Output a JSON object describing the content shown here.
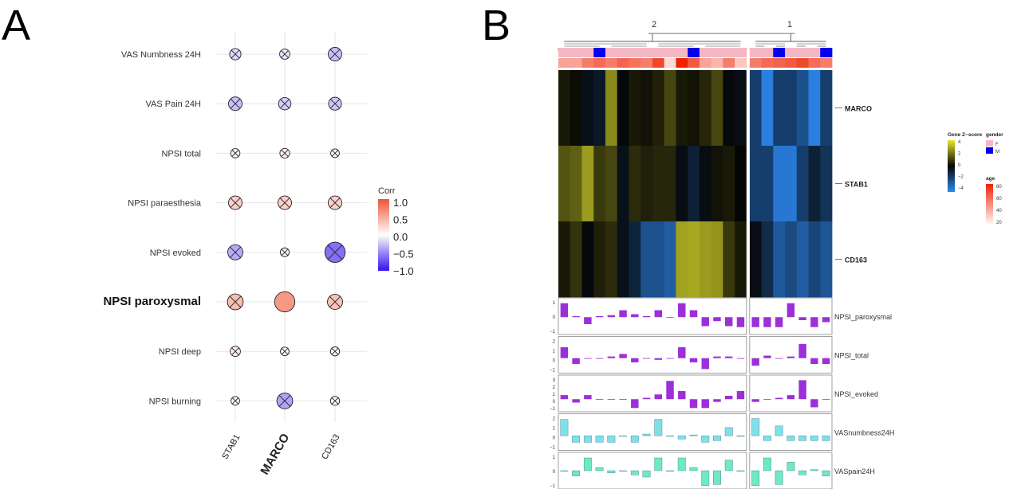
{
  "panel_labels": {
    "a": "A",
    "b": "B"
  },
  "colors": {
    "corr_pos": "#ee5533",
    "corr_neg": "#3311ee",
    "gender_F": "#f4b8c4",
    "gender_M": "#0000ee",
    "bar_purple": "#9b30d8",
    "bar_cyan": "#7fe0e8",
    "bar_teal": "#6fe8c4"
  },
  "chart_data": [
    {
      "type": "scatter",
      "subtype": "correlation-dot-matrix",
      "rows": [
        "VAS Numbness 24H",
        "VAS Pain 24H",
        "NPSI total",
        "NPSI paraesthesia",
        "NPSI evoked",
        "NPSI paroxysmal",
        "NPSI deep",
        "NPSI burning"
      ],
      "columns": [
        "STAB1",
        "MARCO",
        "CD163"
      ],
      "highlight_row": "NPSI paroxysmal",
      "highlight_column": "MARCO",
      "values": [
        [
          -0.15,
          -0.1,
          -0.25
        ],
        [
          -0.25,
          -0.2,
          -0.22
        ],
        [
          -0.06,
          0.08,
          0.03
        ],
        [
          0.25,
          0.25,
          0.25
        ],
        [
          -0.32,
          -0.04,
          -0.55
        ],
        [
          0.35,
          0.55,
          0.32
        ],
        [
          0.1,
          0.03,
          0.05
        ],
        [
          0.03,
          -0.35,
          0.05
        ]
      ],
      "crossed": [
        [
          true,
          true,
          true
        ],
        [
          true,
          true,
          true
        ],
        [
          true,
          true,
          true
        ],
        [
          true,
          true,
          true
        ],
        [
          true,
          true,
          true
        ],
        [
          true,
          false,
          true
        ],
        [
          true,
          true,
          true
        ],
        [
          true,
          true,
          true
        ]
      ],
      "legend": {
        "title": "Corr",
        "ticks": [
          "1.0",
          "0.5",
          "0.0",
          "−0.5",
          "−1.0"
        ]
      }
    },
    {
      "type": "heatmap",
      "cluster_labels": [
        "2",
        "1"
      ],
      "cluster_sizes": [
        16,
        7
      ],
      "genes": [
        "MARCO",
        "STAB1",
        "CD163"
      ],
      "zscores": [
        [
          0.3,
          0.1,
          -0.3,
          -0.5,
          2.0,
          -0.1,
          0.3,
          0.2,
          0.4,
          1.0,
          0.3,
          0.2,
          0.5,
          1.0,
          -0.1,
          -0.2,
          -1.5,
          -3.5,
          -1.5,
          -1.5,
          -2.0,
          -3.5,
          -1.5
        ],
        [
          1.2,
          1.4,
          2.3,
          0.8,
          1.0,
          -0.3,
          0.6,
          0.4,
          0.5,
          0.5,
          -0.2,
          -0.7,
          -0.2,
          0.2,
          0.3,
          0.0,
          -1.5,
          -1.5,
          -3.0,
          -3.0,
          -1.5,
          -0.7,
          -1.2
        ],
        [
          0.3,
          0.7,
          -0.1,
          0.4,
          0.6,
          -0.3,
          -0.8,
          -2.0,
          -2.0,
          -2.3,
          2.4,
          2.5,
          2.3,
          2.2,
          0.8,
          0.3,
          -0.2,
          -1.0,
          -2.2,
          -1.8,
          -2.3,
          -1.7,
          -2.1
        ]
      ],
      "gender": [
        "F",
        "F",
        "F",
        "M",
        "F",
        "F",
        "F",
        "F",
        "F",
        "F",
        "F",
        "M",
        "F",
        "F",
        "F",
        "F",
        "F",
        "F",
        "M",
        "F",
        "F",
        "F",
        "M"
      ],
      "age": [
        45,
        45,
        55,
        60,
        55,
        62,
        58,
        55,
        70,
        30,
        80,
        65,
        45,
        40,
        55,
        35,
        55,
        60,
        62,
        65,
        70,
        60,
        55
      ],
      "legends": {
        "zscore": {
          "title": "Gene Z−score",
          "ticks": [
            "4",
            "2",
            "0",
            "−2",
            "−4"
          ]
        },
        "gender": {
          "title": "gender",
          "items": [
            "F",
            "M"
          ]
        },
        "age": {
          "title": "age",
          "ticks": [
            "80",
            "60",
            "40",
            "20"
          ]
        }
      },
      "bar_tracks": [
        {
          "name": "NPSI_paroxysmal",
          "ticks": [
            "1",
            "0",
            "−1"
          ],
          "ylim": [
            -1.5,
            1.7
          ],
          "color": "bar_purple",
          "values": [
            1.4,
            0.1,
            -0.7,
            0.1,
            0.2,
            0.7,
            0.3,
            0.1,
            0.7,
            0,
            1.4,
            0.7,
            -0.9,
            -0.4,
            -0.9,
            -1.0,
            -1.0,
            -1.0,
            -1.0,
            1.4,
            -0.3,
            -1.0,
            -0.5
          ]
        },
        {
          "name": "NPSI_total",
          "ticks": [
            "2",
            "1",
            "0",
            "−1"
          ],
          "ylim": [
            -1.5,
            2.3
          ],
          "color": "bar_purple",
          "values": [
            1.3,
            -0.7,
            0,
            0,
            0.2,
            0.5,
            -0.5,
            0,
            -0.2,
            0,
            1.3,
            -0.5,
            -1.3,
            0.2,
            0.2,
            0,
            -0.9,
            0.3,
            0,
            0.2,
            1.7,
            -0.7,
            -0.7
          ]
        },
        {
          "name": "NPSI_evoked",
          "ticks": [
            "3",
            "2",
            "1",
            "0",
            "−1"
          ],
          "ylim": [
            -1.5,
            3.2
          ],
          "color": "bar_purple",
          "values": [
            0.6,
            -0.5,
            0.6,
            0,
            0,
            0,
            -1.3,
            0.2,
            0.7,
            2.7,
            1.2,
            -1.3,
            -1.3,
            -0.4,
            0.5,
            1.2,
            -0.4,
            0,
            0.2,
            0.6,
            2.8,
            -1.2,
            0
          ]
        },
        {
          "name": "VASnumbness24H",
          "ticks": [
            "2",
            "1",
            "0",
            "−1"
          ],
          "ylim": [
            -1.5,
            2.4
          ],
          "color": "bar_cyan",
          "values": [
            2.0,
            -0.8,
            -0.8,
            -0.8,
            -0.8,
            0,
            -0.8,
            0.2,
            2.0,
            0,
            -0.4,
            0.1,
            -0.8,
            -0.6,
            1.0,
            0,
            2.1,
            -0.6,
            1.2,
            -0.6,
            -0.6,
            -0.6,
            -0.6
          ]
        },
        {
          "name": "VASpain24H",
          "ticks": [
            "1",
            "0",
            "−1"
          ],
          "ylim": [
            -1.5,
            1.5
          ],
          "color": "bar_teal",
          "values": [
            0,
            -0.5,
            1.2,
            0.3,
            -0.2,
            0,
            -0.4,
            -0.6,
            1.2,
            0,
            1.2,
            0.3,
            -1.4,
            -1.3,
            1.0,
            0,
            -1.4,
            1.2,
            -1.3,
            0.8,
            -0.4,
            0.1,
            -0.5
          ]
        }
      ]
    }
  ]
}
